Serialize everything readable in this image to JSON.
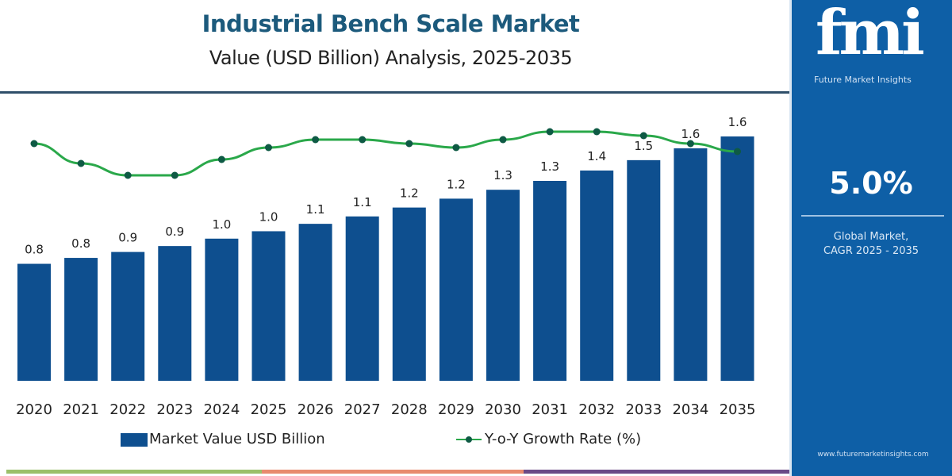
{
  "header": {
    "title": "Industrial Bench Scale Market",
    "subtitle": "Value (USD Billion) Analysis, 2025-2035"
  },
  "side_panel": {
    "logo_text": "fmi",
    "logo_tagline": "Future Market Insights",
    "cagr_value": "5.0%",
    "cagr_label_line1": "Global Market,",
    "cagr_label_line2": "CAGR 2025 - 2035",
    "website": "www.futuremarketinsights.com",
    "background_color": "#0e5fa6"
  },
  "legend": {
    "bar_label": "Market Value USD Billion",
    "line_label": "Y-o-Y Growth Rate (%)"
  },
  "colors": {
    "bar": "#0e4f8f",
    "line": "#2aa84a",
    "marker": "#0e5a44",
    "title": "#1c5a7c",
    "strip": [
      "#9bbf6a",
      "#e88a6e",
      "#6b4a86"
    ]
  },
  "chart_data": {
    "type": "bar",
    "categories": [
      "2020",
      "2021",
      "2022",
      "2023",
      "2024",
      "2025",
      "2026",
      "2027",
      "2028",
      "2029",
      "2030",
      "2031",
      "2032",
      "2033",
      "2034",
      "2035"
    ],
    "series": [
      {
        "name": "Market Value USD Billion",
        "type": "bar",
        "values": [
          0.79,
          0.83,
          0.87,
          0.91,
          0.96,
          1.01,
          1.06,
          1.11,
          1.17,
          1.23,
          1.29,
          1.35,
          1.42,
          1.49,
          1.57,
          1.65
        ],
        "labels": [
          "0.8",
          "0.8",
          "0.9",
          "0.9",
          "1.0",
          "1.0",
          "1.1",
          "1.1",
          "1.2",
          "1.2",
          "1.3",
          "1.3",
          "1.4",
          "1.5",
          "1.6",
          "1.6"
        ]
      },
      {
        "name": "Y-o-Y Growth Rate (%)",
        "type": "line",
        "values": [
          5.0,
          4.5,
          4.2,
          4.2,
          4.6,
          4.9,
          5.1,
          5.1,
          5.0,
          4.9,
          5.1,
          5.3,
          5.3,
          5.2,
          5.0,
          4.8
        ]
      }
    ],
    "ylim": [
      0,
      1.65
    ],
    "y_axis_visible": false,
    "grid": false,
    "legend_placement": "bottom"
  }
}
